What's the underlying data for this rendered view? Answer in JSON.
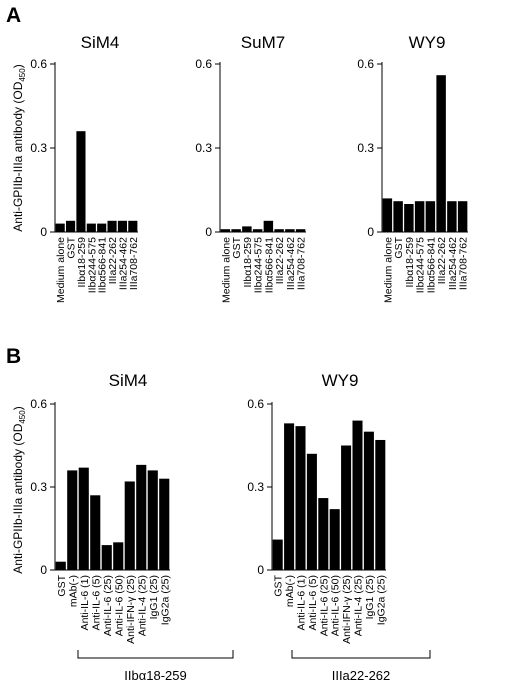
{
  "figure": {
    "panel_a_label": "A",
    "panel_b_label": "B"
  },
  "chart_data": [
    {
      "type": "bar",
      "panel": "A",
      "title": "SiM4",
      "ylabel": "Anti-GPIIb-IIIa antibody (OD450)",
      "ylim": [
        0,
        0.6
      ],
      "yticks": [
        "0",
        "0.3",
        "0.6"
      ],
      "categories": [
        "Medium alone",
        "GST",
        "IIbα18-259",
        "IIbα244-575",
        "IIbα566-841",
        "IIIa22-262",
        "IIIa254-462",
        "IIIa708-762"
      ],
      "values": [
        0.03,
        0.04,
        0.36,
        0.03,
        0.03,
        0.04,
        0.04,
        0.04
      ]
    },
    {
      "type": "bar",
      "panel": "A",
      "title": "SuM7",
      "ylabel": "",
      "ylim": [
        0,
        0.6
      ],
      "yticks": [
        "0",
        "0.3",
        "0.6"
      ],
      "categories": [
        "Medium alone",
        "GST",
        "IIbα18-259",
        "IIbα244-575",
        "IIbα566-841",
        "IIIa22-262",
        "IIIa254-462",
        "IIIa708-762"
      ],
      "values": [
        0.01,
        0.01,
        0.02,
        0.01,
        0.04,
        0.01,
        0.01,
        0.01
      ]
    },
    {
      "type": "bar",
      "panel": "A",
      "title": "WY9",
      "ylabel": "",
      "ylim": [
        0,
        0.6
      ],
      "yticks": [
        "0",
        "0.3",
        "0.6"
      ],
      "categories": [
        "Medium alone",
        "GST",
        "IIbα18-259",
        "IIbα244-575",
        "IIbα566-841",
        "IIIa22-262",
        "IIIa254-462",
        "IIIa708-762"
      ],
      "values": [
        0.12,
        0.11,
        0.1,
        0.11,
        0.11,
        0.56,
        0.11,
        0.11
      ]
    },
    {
      "type": "bar",
      "panel": "B",
      "title": "SiM4",
      "ylabel": "Anti-GPIIb-IIIa antibody (OD450)",
      "ylim": [
        0,
        0.6
      ],
      "yticks": [
        "0",
        "0.3",
        "0.6"
      ],
      "categories": [
        "GST",
        "mAb(-)",
        "Anti-IL-6 (1)",
        "Anti-IL-6 (5)",
        "Anti-IL-6 (25)",
        "Anti-IL-6 (50)",
        "Anti-IFN-γ (25)",
        "Anti-IL-4 (25)",
        "IgG1 (25)",
        "IgG2a (25)"
      ],
      "values": [
        0.03,
        0.36,
        0.37,
        0.27,
        0.09,
        0.1,
        0.32,
        0.38,
        0.36,
        0.33
      ],
      "bracket_label": "IIbα18-259"
    },
    {
      "type": "bar",
      "panel": "B",
      "title": "WY9",
      "ylabel": "",
      "ylim": [
        0,
        0.6
      ],
      "yticks": [
        "0",
        "0.3",
        "0.6"
      ],
      "categories": [
        "GST",
        "mAb(-)",
        "Anti-IL-6 (1)",
        "Anti-IL-6 (5)",
        "Anti-IL-6 (25)",
        "Anti-IL-6 (50)",
        "Anti-IFN-γ (25)",
        "Anti-IL-4 (25)",
        "IgG1 (25)",
        "IgG2a (25)"
      ],
      "values": [
        0.11,
        0.53,
        0.52,
        0.42,
        0.26,
        0.22,
        0.45,
        0.54,
        0.5,
        0.47
      ],
      "bracket_label": "IIIa22-262"
    }
  ]
}
